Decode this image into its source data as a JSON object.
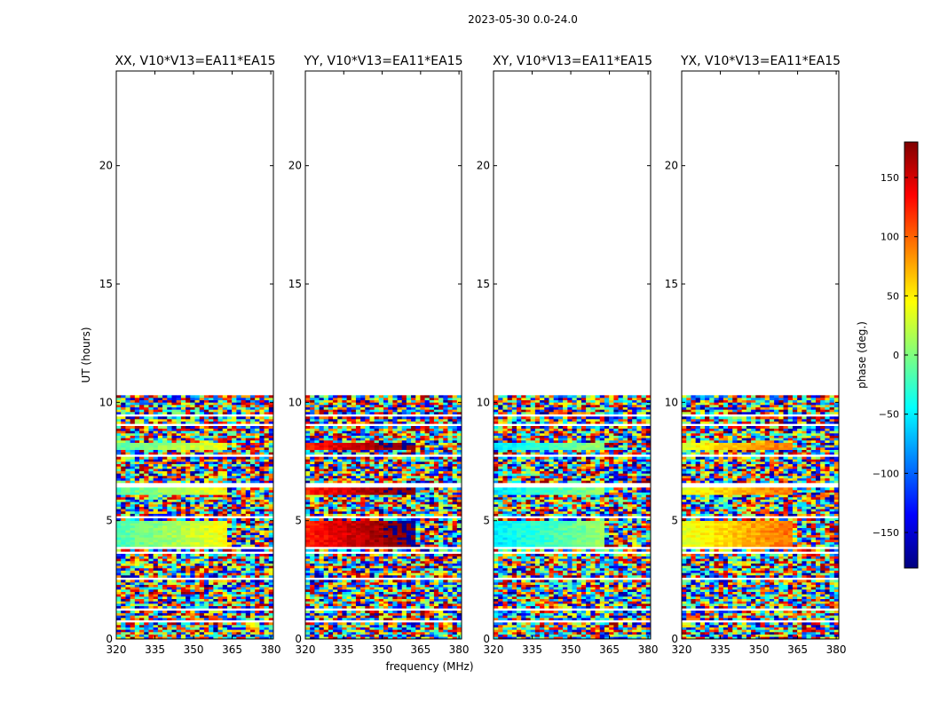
{
  "chart_data": {
    "type": "heatmap",
    "title": "2023-05-30 0.0-24.0",
    "xlabel": "frequency (MHz)",
    "ylabel": "UT (hours)",
    "xlim": [
      320,
      381
    ],
    "ylim": [
      0,
      24
    ],
    "xticks": [
      "320",
      "335",
      "350",
      "365",
      "380"
    ],
    "xtick_values": [
      320,
      335,
      350,
      365,
      380
    ],
    "yticks": [
      "0",
      "5",
      "10",
      "15",
      "20"
    ],
    "ytick_values": [
      0,
      5,
      10,
      15,
      20
    ],
    "data_time_range_hours": [
      0,
      10.4
    ],
    "panels": [
      {
        "title": "XX, V10*V13=EA11*EA15",
        "polarization": "XX"
      },
      {
        "title": "YY, V10*V13=EA11*EA15",
        "polarization": "YY"
      },
      {
        "title": "XY, V10*V13=EA11*EA15",
        "polarization": "XY"
      },
      {
        "title": "YX, V10*V13=EA11*EA15",
        "polarization": "YX"
      }
    ],
    "colorbar": {
      "label": "phase (deg.)",
      "range": [
        -180,
        180
      ],
      "ticks": [
        "150",
        "100",
        "50",
        "0",
        "−50",
        "−100",
        "−150"
      ],
      "tick_values": [
        150,
        100,
        50,
        0,
        -50,
        -100,
        -150
      ],
      "colormap": "jet"
    }
  }
}
